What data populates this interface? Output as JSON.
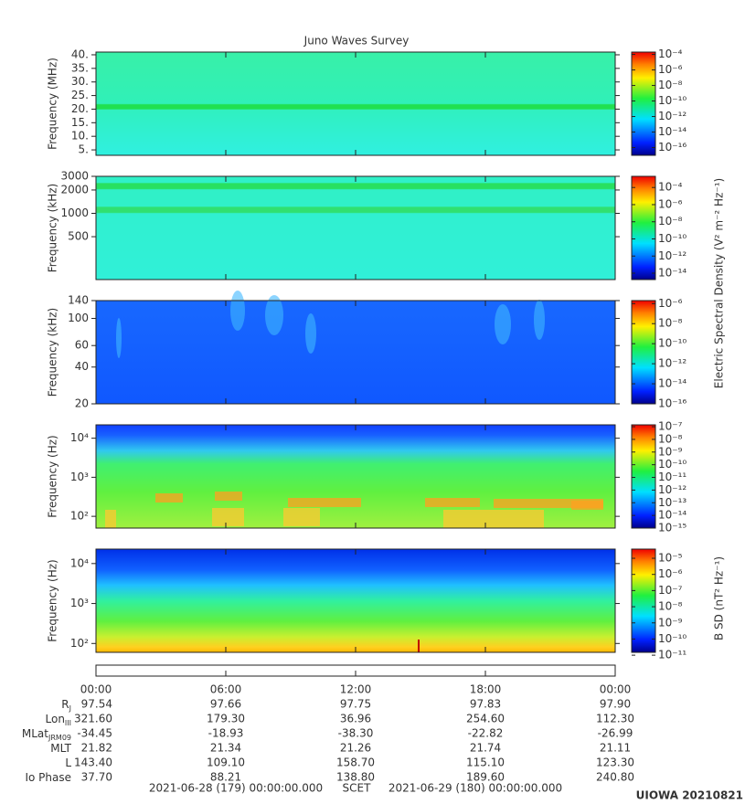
{
  "title": "Juno Waves Survey",
  "chart_data": [
    {
      "type": "spectrogram",
      "ylabel": "Frequency (MHz)",
      "yscale": "linear",
      "ylim": [
        3,
        41
      ],
      "yticks": [
        {
          "value": 40,
          "label": "40."
        },
        {
          "value": 35,
          "label": "35."
        },
        {
          "value": 30,
          "label": "30."
        },
        {
          "value": 25,
          "label": "25."
        },
        {
          "value": 20,
          "label": "20."
        },
        {
          "value": 15,
          "label": "15."
        },
        {
          "value": 10,
          "label": "10."
        },
        {
          "value": 5,
          "label": "5."
        }
      ],
      "clim": [
        1e-17,
        0.0002
      ],
      "cticks": [
        {
          "value": 0.0001,
          "label": "10⁻⁴"
        },
        {
          "value": 1e-06,
          "label": "10⁻⁶"
        },
        {
          "value": 1e-08,
          "label": "10⁻⁸"
        },
        {
          "value": 1e-10,
          "label": "10⁻¹⁰"
        },
        {
          "value": 1e-12,
          "label": "10⁻¹²"
        },
        {
          "value": 1e-14,
          "label": "10⁻¹⁴"
        },
        {
          "value": 1e-16,
          "label": "10⁻¹⁶"
        }
      ]
    },
    {
      "type": "spectrogram",
      "ylabel": "Frequency (kHz)",
      "yscale": "log",
      "ylim": [
        140,
        3000
      ],
      "yticks": [
        3000,
        2000,
        1000,
        500
      ],
      "clim": [
        1.8e-15,
        0.002
      ],
      "cticks": [
        {
          "value": 0.0001,
          "label": "10⁻⁴"
        },
        {
          "value": 1e-06,
          "label": "10⁻⁶"
        },
        {
          "value": 1e-08,
          "label": "10⁻⁸"
        },
        {
          "value": 1e-10,
          "label": "10⁻¹⁰"
        },
        {
          "value": 1e-12,
          "label": "10⁻¹²"
        },
        {
          "value": 1e-14,
          "label": "10⁻¹⁴"
        }
      ]
    },
    {
      "type": "spectrogram",
      "ylabel": "Frequency (kHz)",
      "yscale": "log",
      "ylim": [
        20,
        140
      ],
      "yticks": [
        140,
        100,
        60,
        40,
        20
      ],
      "clim": [
        1e-16,
        2e-06
      ],
      "cticks": [
        {
          "value": 1e-06,
          "label": "10⁻⁶"
        },
        {
          "value": 1e-08,
          "label": "10⁻⁸"
        },
        {
          "value": 1e-10,
          "label": "10⁻¹⁰"
        },
        {
          "value": 1e-12,
          "label": "10⁻¹²"
        },
        {
          "value": 1e-14,
          "label": "10⁻¹⁴"
        },
        {
          "value": 1e-16,
          "label": "10⁻¹⁶"
        }
      ]
    },
    {
      "type": "spectrogram",
      "ylabel": "Frequency (Hz)",
      "yscale": "log",
      "ylim": [
        50,
        22000
      ],
      "yticks": [
        {
          "value": 10000,
          "label": "10⁴"
        },
        {
          "value": 1000,
          "label": "10³"
        },
        {
          "value": 100,
          "label": "10²"
        }
      ],
      "clim": [
        1e-15,
        1.4e-07
      ],
      "cticks": [
        {
          "value": 1e-07,
          "label": "10⁻⁷"
        },
        {
          "value": 1e-08,
          "label": "10⁻⁸"
        },
        {
          "value": 1e-09,
          "label": "10⁻⁹"
        },
        {
          "value": 1e-10,
          "label": "10⁻¹⁰"
        },
        {
          "value": 1e-11,
          "label": "10⁻¹¹"
        },
        {
          "value": 1e-12,
          "label": "10⁻¹²"
        },
        {
          "value": 1e-13,
          "label": "10⁻¹³"
        },
        {
          "value": 1e-14,
          "label": "10⁻¹⁴"
        },
        {
          "value": 1e-15,
          "label": "10⁻¹⁵"
        }
      ]
    },
    {
      "type": "spectrogram",
      "ylabel": "Frequency (Hz)",
      "yscale": "log",
      "ylim": [
        60,
        23000
      ],
      "yticks": [
        {
          "value": 10000,
          "label": "10⁴"
        },
        {
          "value": 1000,
          "label": "10³"
        },
        {
          "value": 100,
          "label": "10²"
        }
      ],
      "clim": [
        1.5e-11,
        3.7e-05
      ],
      "cticks": [
        {
          "value": 1e-05,
          "label": "10⁻⁵"
        },
        {
          "value": 1e-06,
          "label": "10⁻⁶"
        },
        {
          "value": 1e-07,
          "label": "10⁻⁷"
        },
        {
          "value": 1e-08,
          "label": "10⁻⁸"
        },
        {
          "value": 1e-09,
          "label": "10⁻⁹"
        },
        {
          "value": 1e-10,
          "label": "10⁻¹⁰"
        },
        {
          "value": 1e-11,
          "label": "10⁻¹¹"
        }
      ]
    }
  ],
  "colorbar_labels": [
    "Electric Spectral Density (V² m⁻² Hz⁻¹)",
    "B SD (nT² Hz⁻¹)"
  ],
  "time_axis": {
    "xlim": [
      0,
      24
    ],
    "xticks": [
      {
        "value": 0,
        "label": "00:00"
      },
      {
        "value": 6,
        "label": "06:00"
      },
      {
        "value": 12,
        "label": "12:00"
      },
      {
        "value": 18,
        "label": "18:00"
      },
      {
        "value": 24,
        "label": "00:00"
      }
    ]
  },
  "ephemeris": {
    "rows": [
      {
        "label": "R",
        "sub": "J",
        "values": [
          "97.54",
          "97.66",
          "97.75",
          "97.83",
          "97.90"
        ]
      },
      {
        "label": "Lon",
        "sub": "III",
        "values": [
          "321.60",
          "179.30",
          "36.96",
          "254.60",
          "112.30"
        ]
      },
      {
        "label": "MLat",
        "sub": "JRM09",
        "values": [
          "-34.45",
          "-18.93",
          "-38.30",
          "-22.82",
          "-26.99"
        ]
      },
      {
        "label": "MLT",
        "values": [
          "21.82",
          "21.34",
          "21.26",
          "21.74",
          "21.11"
        ]
      },
      {
        "label": "L",
        "values": [
          "143.40",
          "109.10",
          "158.70",
          "115.10",
          "123.30"
        ]
      },
      {
        "label": "Io Phase",
        "values": [
          "37.70",
          "88.21",
          "138.80",
          "189.60",
          "240.80"
        ]
      }
    ]
  },
  "footer": {
    "start": "2021-06-28 (179) 00:00:00.000",
    "label": "SCET",
    "end": "2021-06-29 (180) 00:00:00.000"
  },
  "stamp": "UIOWA 20210821"
}
